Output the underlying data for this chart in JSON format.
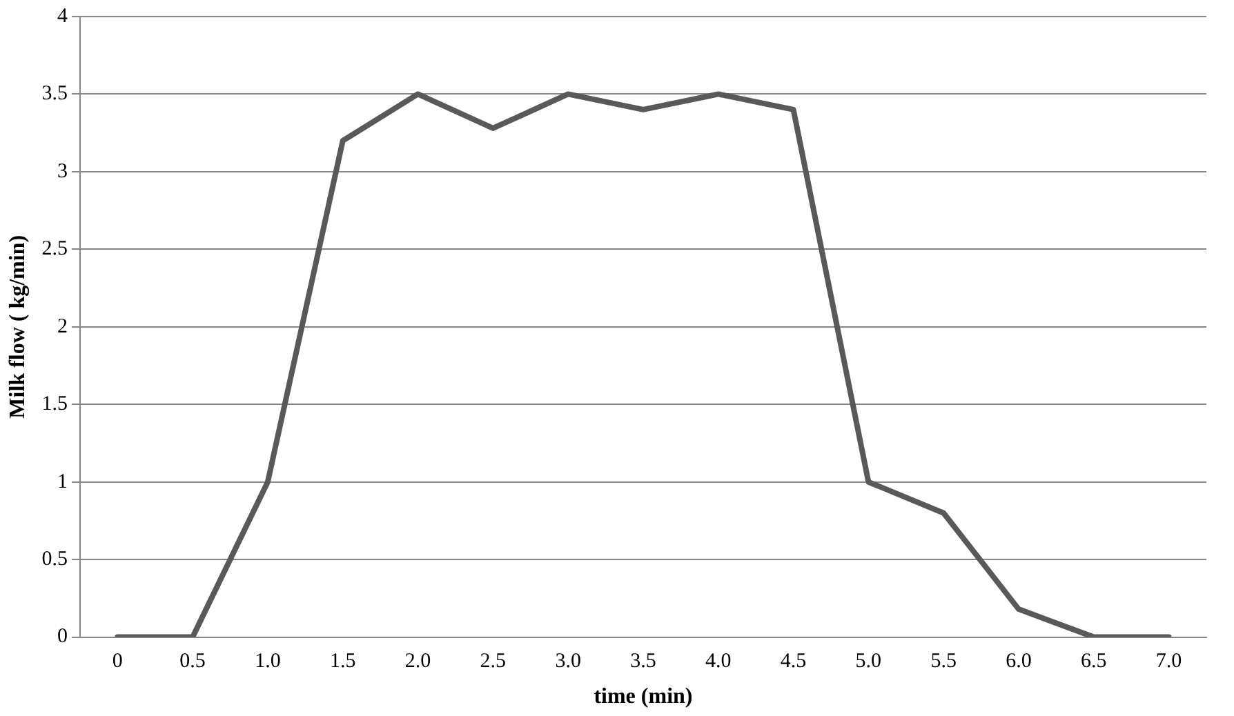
{
  "chart_data": {
    "type": "line",
    "xlabel": "time (min)",
    "ylabel": "Milk flow ( kg/min)",
    "categories": [
      "0",
      "0.5",
      "1.0",
      "1.5",
      "2.0",
      "2.5",
      "3.0",
      "3.5",
      "4.0",
      "4.5",
      "5.0",
      "5.5",
      "6.0",
      "6.5",
      "7.0"
    ],
    "series": [
      {
        "color": "#595959",
        "values": [
          0,
          0,
          1.0,
          3.2,
          3.5,
          3.28,
          3.5,
          3.4,
          3.5,
          3.4,
          1.0,
          0.8,
          0.18,
          0,
          0
        ]
      }
    ],
    "ylim": [
      0,
      4
    ],
    "yticks": [
      0,
      0.5,
      1,
      1.5,
      2,
      2.5,
      3,
      3.5,
      4
    ],
    "grid": "y",
    "legend": false,
    "marker": "none",
    "line_style": "solid"
  }
}
